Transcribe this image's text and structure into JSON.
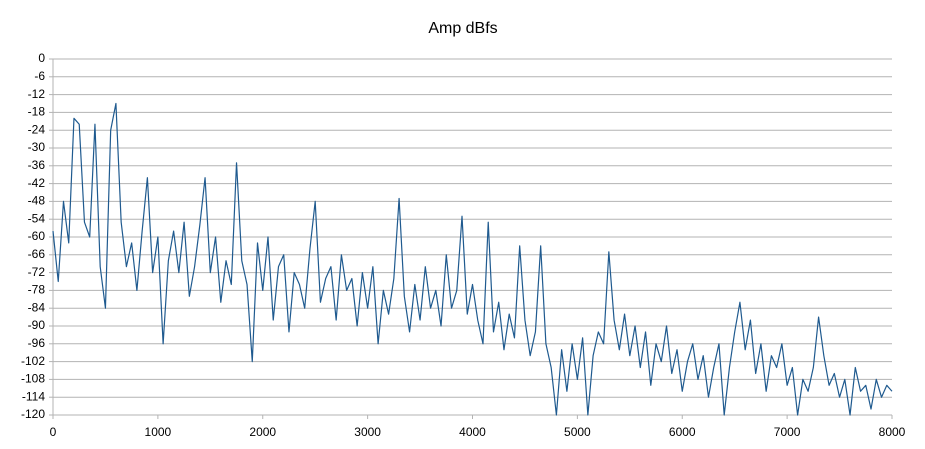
{
  "chart_data": {
    "type": "line",
    "title": "Amp dBfs",
    "x": [
      0,
      50,
      100,
      150,
      200,
      250,
      300,
      350,
      400,
      450,
      500,
      550,
      600,
      650,
      700,
      750,
      800,
      850,
      900,
      950,
      1000,
      1050,
      1100,
      1150,
      1200,
      1250,
      1300,
      1350,
      1400,
      1450,
      1500,
      1550,
      1600,
      1650,
      1700,
      1750,
      1800,
      1850,
      1900,
      1950,
      2000,
      2050,
      2100,
      2150,
      2200,
      2250,
      2300,
      2350,
      2400,
      2450,
      2500,
      2550,
      2600,
      2650,
      2700,
      2750,
      2800,
      2850,
      2900,
      2950,
      3000,
      3050,
      3100,
      3150,
      3200,
      3250,
      3300,
      3350,
      3400,
      3450,
      3500,
      3550,
      3600,
      3650,
      3700,
      3750,
      3800,
      3850,
      3900,
      3950,
      4000,
      4050,
      4100,
      4150,
      4200,
      4250,
      4300,
      4350,
      4400,
      4450,
      4500,
      4550,
      4600,
      4650,
      4700,
      4750,
      4800,
      4850,
      4900,
      4950,
      5000,
      5050,
      5100,
      5150,
      5200,
      5250,
      5300,
      5350,
      5400,
      5450,
      5500,
      5550,
      5600,
      5650,
      5700,
      5750,
      5800,
      5850,
      5900,
      5950,
      6000,
      6050,
      6100,
      6150,
      6200,
      6250,
      6300,
      6350,
      6400,
      6450,
      6500,
      6550,
      6600,
      6650,
      6700,
      6750,
      6800,
      6850,
      6900,
      6950,
      7000,
      7050,
      7100,
      7150,
      7200,
      7250,
      7300,
      7350,
      7400,
      7450,
      7500,
      7550,
      7600,
      7650,
      7700,
      7750,
      7800,
      7850,
      7900,
      7950,
      8000
    ],
    "series": [
      {
        "color": "#1f5a8f",
        "values": [
          -58,
          -75,
          -48,
          -62,
          -20,
          -22,
          -55,
          -60,
          -22,
          -70,
          -84,
          -24,
          -15,
          -55,
          -70,
          -62,
          -78,
          -58,
          -40,
          -72,
          -60,
          -96,
          -68,
          -58,
          -72,
          -55,
          -80,
          -70,
          -56,
          -40,
          -72,
          -60,
          -82,
          -68,
          -76,
          -35,
          -68,
          -76,
          -102,
          -62,
          -78,
          -60,
          -88,
          -70,
          -66,
          -92,
          -72,
          -76,
          -84,
          -64,
          -48,
          -82,
          -74,
          -70,
          -88,
          -66,
          -78,
          -74,
          -90,
          -72,
          -84,
          -70,
          -96,
          -78,
          -86,
          -74,
          -47,
          -80,
          -92,
          -76,
          -88,
          -70,
          -84,
          -78,
          -90,
          -66,
          -84,
          -78,
          -53,
          -86,
          -76,
          -88,
          -96,
          -55,
          -92,
          -82,
          -98,
          -86,
          -94,
          -63,
          -88,
          -100,
          -92,
          -63,
          -96,
          -104,
          -120,
          -98,
          -112,
          -96,
          -108,
          -94,
          -120,
          -100,
          -92,
          -96,
          -65,
          -88,
          -98,
          -86,
          -100,
          -90,
          -104,
          -92,
          -110,
          -96,
          -102,
          -90,
          -106,
          -98,
          -112,
          -102,
          -96,
          -108,
          -100,
          -114,
          -104,
          -96,
          -120,
          -104,
          -92,
          -82,
          -98,
          -88,
          -106,
          -96,
          -112,
          -100,
          -104,
          -96,
          -110,
          -104,
          -120,
          -108,
          -112,
          -104,
          -87,
          -100,
          -110,
          -106,
          -114,
          -108,
          -120,
          -104,
          -112,
          -110,
          -118,
          -108,
          -114,
          -110,
          -112
        ]
      }
    ],
    "xlim": [
      0,
      8000
    ],
    "ylim": [
      -120,
      0
    ],
    "xticks": [
      0,
      1000,
      2000,
      3000,
      4000,
      5000,
      6000,
      7000,
      8000
    ],
    "yticks": [
      0,
      -6,
      -12,
      -18,
      -24,
      -30,
      -36,
      -42,
      -48,
      -54,
      -60,
      -66,
      -72,
      -78,
      -84,
      -90,
      -96,
      -102,
      -108,
      -114,
      -120
    ],
    "grid": true
  }
}
